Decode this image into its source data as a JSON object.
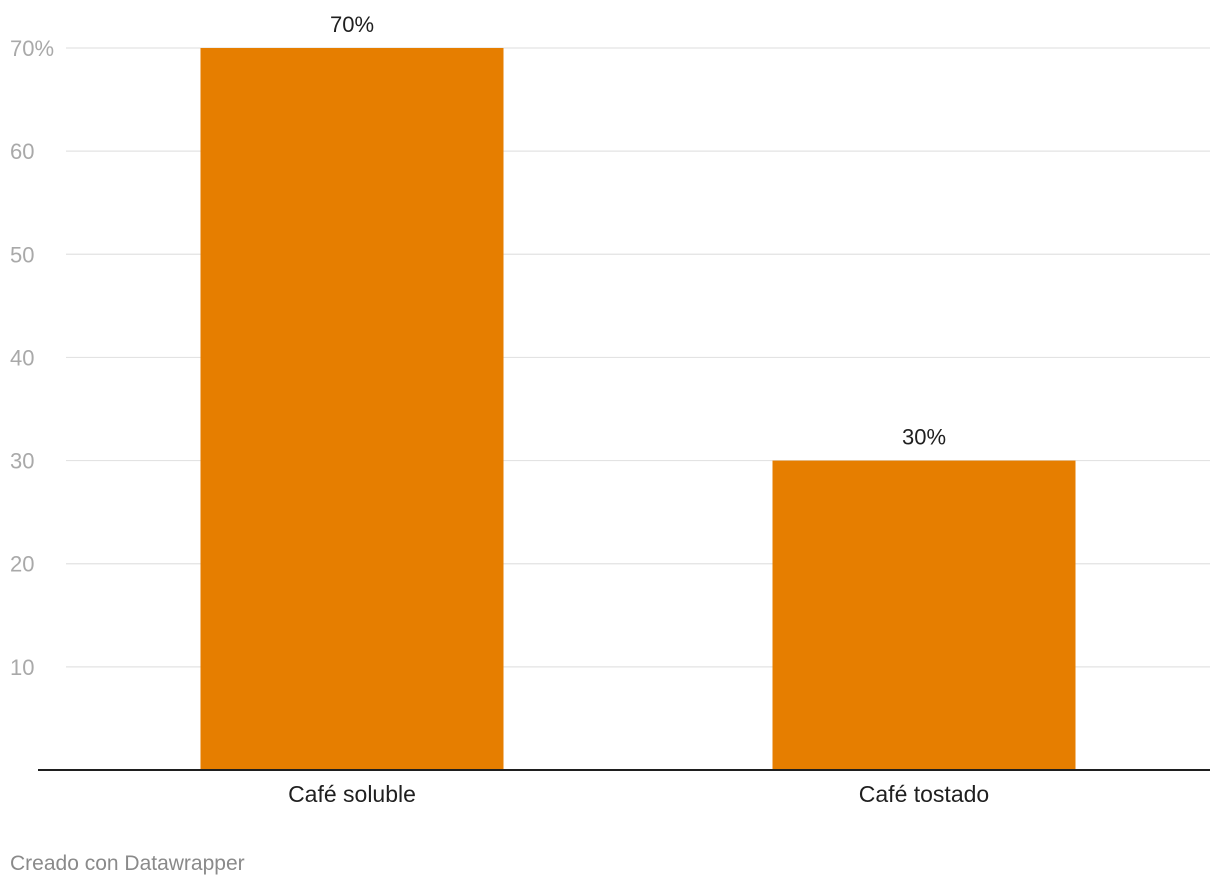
{
  "chart_data": {
    "type": "bar",
    "categories": [
      "Café soluble",
      "Café tostado"
    ],
    "values": [
      70,
      30
    ],
    "value_labels": [
      "70%",
      "30%"
    ],
    "title": "",
    "xlabel": "",
    "ylabel": "",
    "ylim": [
      0,
      70
    ],
    "y_ticks": [
      {
        "value": 70,
        "label": "70%"
      },
      {
        "value": 60,
        "label": "60"
      },
      {
        "value": 50,
        "label": "50"
      },
      {
        "value": 40,
        "label": "40"
      },
      {
        "value": 30,
        "label": "30"
      },
      {
        "value": 20,
        "label": "20"
      },
      {
        "value": 10,
        "label": "10"
      }
    ],
    "grid": true,
    "bar_color": "#e67e00"
  },
  "footer": {
    "credit": "Creado con Datawrapper"
  }
}
